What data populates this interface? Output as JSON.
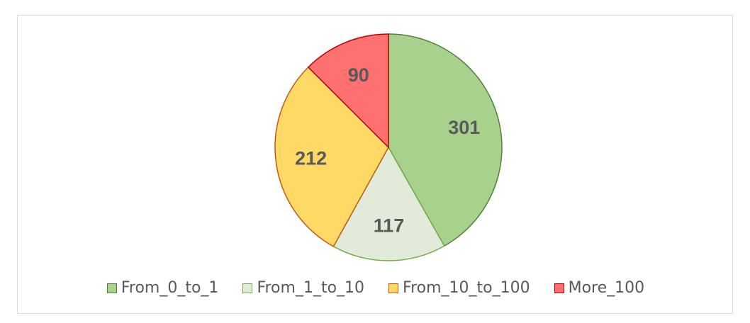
{
  "chart_data": {
    "type": "pie",
    "categories": [
      "From_0_to_1",
      "From_1_to_10",
      "From_10_to_100",
      "More_100"
    ],
    "values": [
      301,
      117,
      212,
      90
    ],
    "colors": [
      "#a9d18e",
      "#e2ead9",
      "#ffd966",
      "#ff7171"
    ],
    "borders": [
      "#548235",
      "#70ad47",
      "#c55a11",
      "#c00000"
    ],
    "title": "",
    "legend": "bottom",
    "start_angle_deg": 0,
    "direction": "clockwise"
  }
}
